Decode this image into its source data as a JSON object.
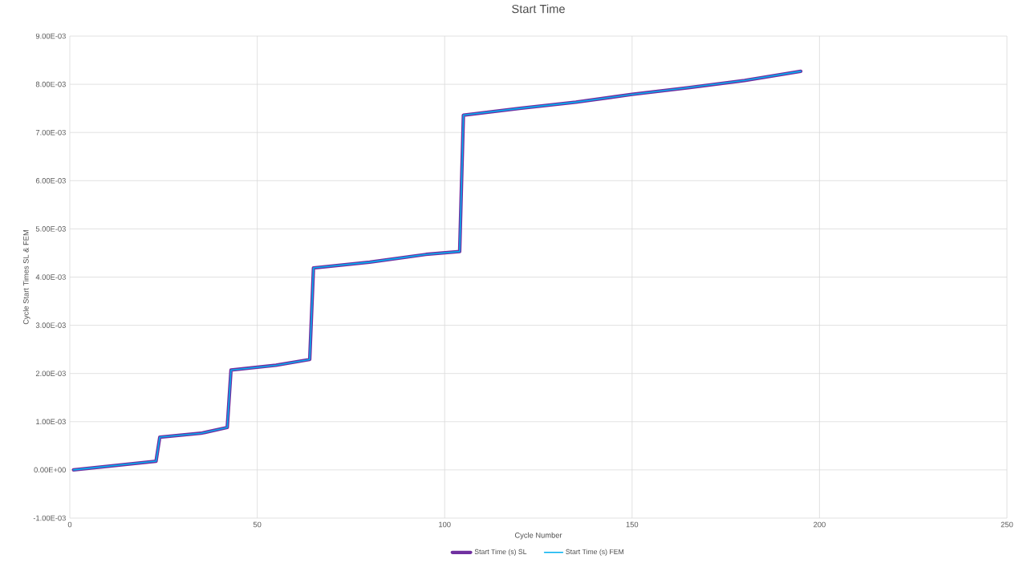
{
  "chart_data": {
    "type": "line",
    "title": "Start Time",
    "xlabel": "Cycle Number",
    "ylabel": "Cycle Start Times SL & FEM",
    "x": [
      1,
      23,
      24,
      35,
      42,
      43,
      55,
      64,
      65,
      80,
      95,
      104,
      105,
      120,
      135,
      150,
      165,
      180,
      195
    ],
    "series": [
      {
        "name": "Start Time (s) SL",
        "color": "#7030a0",
        "values": [
          0,
          0.00018,
          0.00068,
          0.00076,
          0.00088,
          0.00207,
          0.00217,
          0.00229,
          0.00419,
          0.00431,
          0.00447,
          0.00453,
          0.00736,
          0.0075,
          0.00763,
          0.00779,
          0.00793,
          0.00808,
          0.00827
        ]
      },
      {
        "name": "Start Time (s) FEM",
        "color": "#00b0f0",
        "values": [
          0,
          0.00018,
          0.00068,
          0.00076,
          0.00088,
          0.00207,
          0.00217,
          0.00229,
          0.00419,
          0.00431,
          0.00447,
          0.00453,
          0.00736,
          0.0075,
          0.00763,
          0.00779,
          0.00793,
          0.00808,
          0.00827
        ]
      }
    ],
    "xlim": [
      0,
      250
    ],
    "xticks": [
      0,
      50,
      100,
      150,
      200,
      250
    ],
    "ylim": [
      -0.001,
      0.009
    ],
    "yticks": [
      {
        "value": -0.001,
        "label": "-1.00E-03"
      },
      {
        "value": 0,
        "label": "0.00E+00"
      },
      {
        "value": 0.001,
        "label": "1.00E-03"
      },
      {
        "value": 0.002,
        "label": "2.00E-03"
      },
      {
        "value": 0.003,
        "label": "3.00E-03"
      },
      {
        "value": 0.004,
        "label": "4.00E-03"
      },
      {
        "value": 0.005,
        "label": "5.00E-03"
      },
      {
        "value": 0.006,
        "label": "6.00E-03"
      },
      {
        "value": 0.007,
        "label": "7.00E-03"
      },
      {
        "value": 0.008,
        "label": "8.00E-03"
      },
      {
        "value": 0.009,
        "label": "9.00E-03"
      }
    ],
    "grid": true,
    "legend": "bottom",
    "marker": "none",
    "line_style": "solid"
  }
}
